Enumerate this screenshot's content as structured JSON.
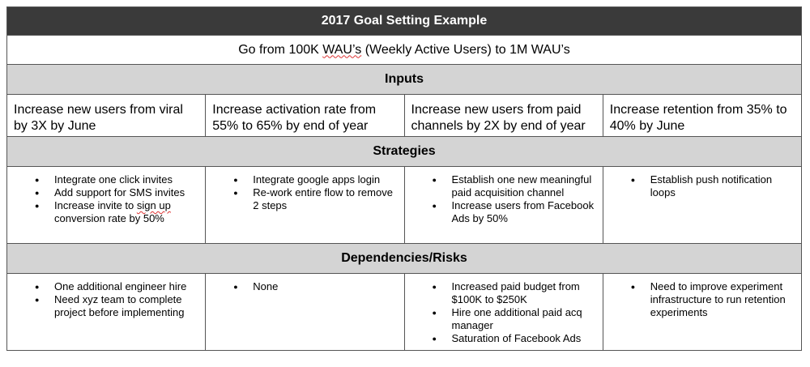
{
  "title": "2017 Goal Setting Example",
  "goal": {
    "prefix": "Go from 100K ",
    "wau": "WAU’s",
    "suffix": " (Weekly Active Users) to 1M WAU’s"
  },
  "inputs": {
    "header": "Inputs",
    "items": [
      "Increase new users from viral by 3X by June",
      "Increase activation rate from 55% to 65% by end of year",
      "Increase new users from paid channels by 2X by end of year",
      "Increase retention from 35% to 40% by June"
    ]
  },
  "strategies": {
    "header": "Strategies",
    "columns": [
      {
        "items": [
          "Integrate one click invites",
          "Add support for SMS invites"
        ],
        "special": {
          "pre": "Increase invite to ",
          "wavy": "sign up",
          "post": " conversion rate by 50%"
        }
      },
      {
        "items": [
          "Integrate google apps login",
          "Re-work entire flow to remove 2 steps"
        ]
      },
      {
        "items": [
          "Establish one new meaningful paid acquisition channel",
          "Increase users from Facebook Ads by 50%"
        ]
      },
      {
        "items": [
          "Establish push notification loops"
        ]
      }
    ]
  },
  "dependencies": {
    "header": "Dependencies/Risks",
    "columns": [
      {
        "items": [
          "One additional engineer hire",
          "Need xyz team to complete project before implementing"
        ]
      },
      {
        "items": [
          "None"
        ]
      },
      {
        "items": [
          "Increased paid budget from $100K to $250K",
          "Hire one additional paid acq manager",
          "Saturation of Facebook Ads"
        ]
      },
      {
        "items": [
          "Need to improve experiment infrastructure to run retention experiments"
        ]
      }
    ]
  }
}
